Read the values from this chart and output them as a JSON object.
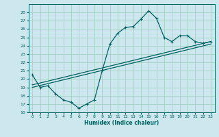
{
  "xlabel": "Humidex (Indice chaleur)",
  "bg_color": "#cce8ee",
  "line_color": "#006060",
  "grid_color": "#99ccbb",
  "xlim": [
    -0.5,
    23.5
  ],
  "ylim": [
    16,
    29
  ],
  "yticks": [
    16,
    17,
    18,
    19,
    20,
    21,
    22,
    23,
    24,
    25,
    26,
    27,
    28
  ],
  "xticks": [
    0,
    1,
    2,
    3,
    4,
    5,
    6,
    7,
    8,
    9,
    10,
    11,
    12,
    13,
    14,
    15,
    16,
    17,
    18,
    19,
    20,
    21,
    22,
    23
  ],
  "curve1_x": [
    0,
    1,
    2,
    3,
    4,
    5,
    6,
    7,
    8,
    9,
    10,
    11,
    12,
    13,
    14,
    15,
    16,
    17,
    18,
    19,
    20,
    21,
    22,
    23
  ],
  "curve1_y": [
    20.5,
    19.0,
    19.2,
    18.2,
    17.5,
    17.2,
    16.5,
    17.0,
    17.5,
    21.0,
    24.2,
    25.5,
    26.2,
    26.3,
    27.2,
    28.2,
    27.3,
    25.0,
    24.5,
    25.2,
    25.2,
    24.5,
    24.3,
    24.5
  ],
  "line2_x": [
    0,
    23
  ],
  "line2_y": [
    19.3,
    24.5
  ],
  "line3_x": [
    0,
    23
  ],
  "line3_y": [
    19.0,
    24.2
  ],
  "marker": "+",
  "marker_size": 3.5,
  "line_width": 0.9
}
